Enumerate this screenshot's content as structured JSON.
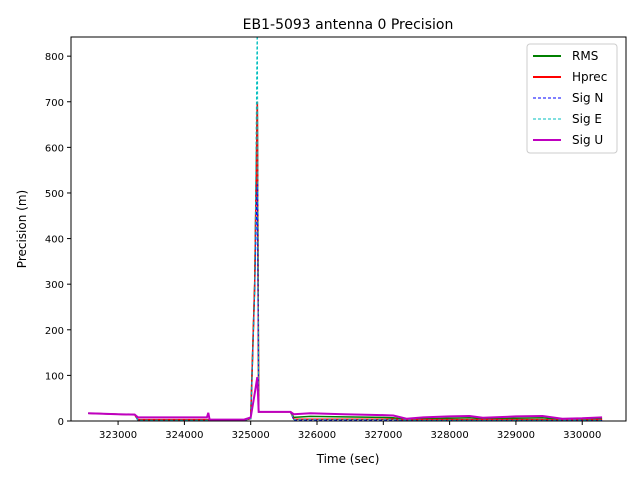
{
  "chart_data": {
    "type": "line",
    "title": "EB1-5093 antenna 0 Precision",
    "xlabel": "Time (sec)",
    "ylabel": "Precision (m)",
    "xlim": [
      322290,
      330660
    ],
    "ylim": [
      0,
      842
    ],
    "xticks": [
      323000,
      324000,
      325000,
      326000,
      327000,
      328000,
      329000,
      330000
    ],
    "yticks": [
      0,
      100,
      200,
      300,
      400,
      500,
      600,
      700,
      800
    ],
    "grid": false,
    "legend": "top-right",
    "x": [
      322550,
      323000,
      323250,
      323300,
      324340,
      324360,
      324380,
      324900,
      325000,
      325060,
      325100,
      325120,
      325600,
      325650,
      325900,
      326400,
      327000,
      327150,
      327350,
      327600,
      328000,
      328300,
      328500,
      329000,
      329400,
      329700,
      330000,
      330300
    ],
    "series": [
      {
        "name": "RMS",
        "color": "#008000",
        "style": "solid",
        "values": [
          17,
          15,
          14,
          2,
          2,
          2,
          1,
          2,
          5,
          300,
          700,
          20,
          20,
          8,
          10,
          9,
          8,
          7,
          3,
          5,
          6,
          7,
          5,
          6,
          7,
          3,
          4,
          5
        ]
      },
      {
        "name": "Hprec",
        "color": "#ff0000",
        "style": "solid",
        "values": [
          17,
          15,
          14,
          3,
          3,
          3,
          2,
          2,
          6,
          300,
          700,
          20,
          20,
          4,
          4,
          4,
          4,
          4,
          2,
          3,
          3,
          3,
          3,
          3,
          3,
          2,
          2,
          3
        ]
      },
      {
        "name": "Sig N",
        "color": "#0000ff",
        "style": "dashed",
        "values": [
          17,
          15,
          14,
          1,
          1,
          1,
          1,
          2,
          5,
          290,
          520,
          20,
          20,
          2,
          2,
          2,
          2,
          2,
          1,
          1,
          1,
          1,
          1,
          1,
          1,
          1,
          1,
          1
        ]
      },
      {
        "name": "Sig E",
        "color": "#00bfbf",
        "style": "dashed",
        "values": [
          17,
          15,
          14,
          2,
          2,
          2,
          1,
          2,
          5,
          290,
          900,
          20,
          20,
          3,
          3,
          3,
          3,
          3,
          2,
          2,
          2,
          2,
          2,
          2,
          2,
          2,
          2,
          2
        ]
      },
      {
        "name": "Sig U",
        "color": "#bf00bf",
        "style": "solid",
        "values": [
          17,
          15,
          14,
          8,
          8,
          18,
          3,
          3,
          8,
          60,
          96,
          20,
          20,
          15,
          17,
          15,
          13,
          12,
          5,
          8,
          10,
          11,
          7,
          10,
          11,
          5,
          6,
          8
        ]
      }
    ]
  }
}
